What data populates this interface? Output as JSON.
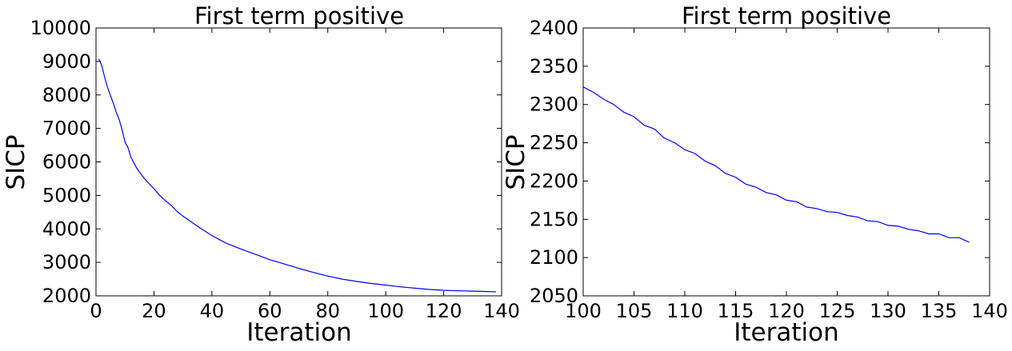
{
  "chart_data": [
    {
      "type": "line",
      "title": "First term positive",
      "xlabel": "Iteration",
      "ylabel": "SICP",
      "xlim": [
        0,
        140
      ],
      "ylim": [
        2000,
        10000
      ],
      "xticks": [
        "0",
        "20",
        "40",
        "60",
        "80",
        "100",
        "120",
        "140"
      ],
      "yticks": [
        "2000",
        "3000",
        "4000",
        "5000",
        "6000",
        "7000",
        "8000",
        "9000",
        "10000"
      ],
      "grid": false,
      "series": [
        {
          "color": "#0000ff",
          "x": [
            1,
            2,
            3,
            4,
            5,
            6,
            7,
            8,
            9,
            10,
            11,
            12,
            13,
            14,
            15,
            16,
            18,
            20,
            22,
            24,
            26,
            28,
            30,
            33,
            36,
            40,
            45,
            50,
            55,
            60,
            65,
            70,
            75,
            80,
            85,
            90,
            95,
            100,
            105,
            110,
            115,
            120,
            125,
            130,
            135,
            138
          ],
          "y": [
            9080,
            8880,
            8520,
            8220,
            7980,
            7750,
            7480,
            7260,
            6960,
            6600,
            6440,
            6150,
            5980,
            5820,
            5700,
            5580,
            5380,
            5200,
            5000,
            4840,
            4700,
            4520,
            4380,
            4200,
            4020,
            3800,
            3570,
            3400,
            3240,
            3080,
            2950,
            2820,
            2700,
            2590,
            2500,
            2430,
            2370,
            2320,
            2270,
            2230,
            2190,
            2165,
            2150,
            2140,
            2128,
            2120
          ]
        }
      ]
    },
    {
      "type": "line",
      "title": "First term positive",
      "xlabel": "Iteration",
      "ylabel": "SICP",
      "xlim": [
        100,
        140
      ],
      "ylim": [
        2050,
        2400
      ],
      "xticks": [
        "100",
        "105",
        "110",
        "115",
        "120",
        "125",
        "130",
        "135",
        "140"
      ],
      "yticks": [
        "2050",
        "2100",
        "2150",
        "2200",
        "2250",
        "2300",
        "2350",
        "2400"
      ],
      "grid": false,
      "series": [
        {
          "color": "#0000ff",
          "x": [
            100,
            101,
            102,
            103,
            104,
            105,
            106,
            107,
            108,
            109,
            110,
            111,
            112,
            113,
            114,
            115,
            116,
            117,
            118,
            119,
            120,
            121,
            122,
            123,
            124,
            125,
            126,
            127,
            128,
            129,
            130,
            131,
            132,
            133,
            134,
            135,
            136,
            137,
            138
          ],
          "y": [
            2323,
            2316,
            2307,
            2300,
            2290,
            2284,
            2273,
            2268,
            2256,
            2250,
            2241,
            2236,
            2226,
            2220,
            2210,
            2205,
            2196,
            2192,
            2185,
            2182,
            2175,
            2173,
            2166,
            2164,
            2160,
            2159,
            2155,
            2153,
            2148,
            2147,
            2142,
            2141,
            2137,
            2135,
            2131,
            2131,
            2126,
            2126,
            2120
          ]
        }
      ]
    }
  ]
}
